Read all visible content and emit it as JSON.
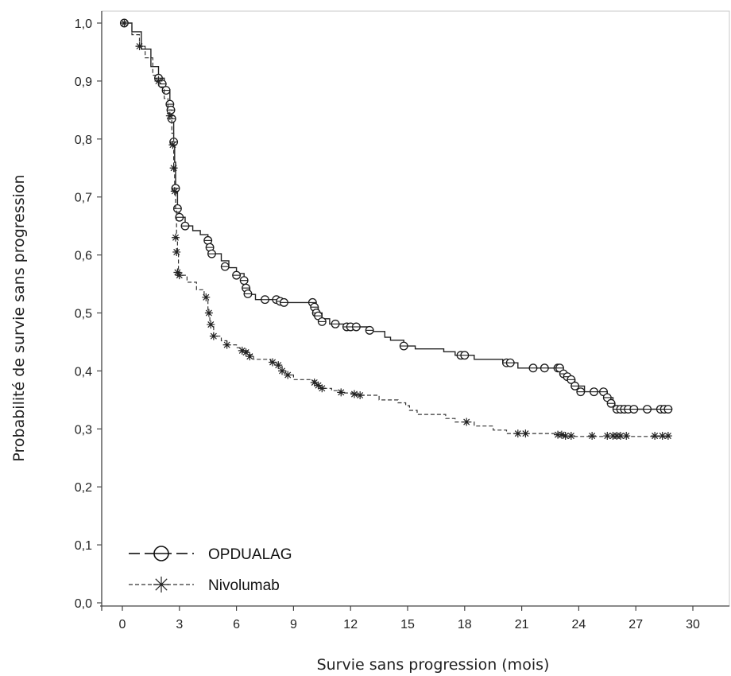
{
  "chart_data": {
    "type": "line",
    "xlabel": "Survie sans progression (mois)",
    "ylabel": "Probabilité de survie sans progression",
    "xlim": [
      0,
      30
    ],
    "ylim": [
      0.0,
      1.0
    ],
    "x_ticks": [
      "0",
      "3",
      "6",
      "9",
      "12",
      "15",
      "18",
      "21",
      "24",
      "27",
      "30"
    ],
    "y_ticks": [
      "0,0",
      "0,1",
      "0,2",
      "0,3",
      "0,4",
      "0,5",
      "0,6",
      "0,7",
      "0,8",
      "0,9",
      "1,0"
    ],
    "grid": false,
    "legend_position": "bottom-left",
    "series": [
      {
        "name": "OPDUALAG",
        "line_style": "solid",
        "marker": "circle",
        "color": "#222222",
        "points": [
          [
            0,
            1.0
          ],
          [
            0.5,
            0.985
          ],
          [
            1.0,
            0.955
          ],
          [
            1.5,
            0.925
          ],
          [
            1.9,
            0.905
          ],
          [
            2.2,
            0.885
          ],
          [
            2.5,
            0.86
          ],
          [
            2.6,
            0.835
          ],
          [
            2.7,
            0.795
          ],
          [
            2.75,
            0.76
          ],
          [
            2.8,
            0.715
          ],
          [
            2.9,
            0.68
          ],
          [
            3.0,
            0.665
          ],
          [
            3.3,
            0.65
          ],
          [
            3.7,
            0.642
          ],
          [
            4.1,
            0.635
          ],
          [
            4.5,
            0.625
          ],
          [
            4.6,
            0.613
          ],
          [
            4.7,
            0.602
          ],
          [
            5.2,
            0.59
          ],
          [
            5.6,
            0.578
          ],
          [
            6.0,
            0.568
          ],
          [
            6.4,
            0.556
          ],
          [
            6.5,
            0.543
          ],
          [
            6.7,
            0.532
          ],
          [
            7.0,
            0.523
          ],
          [
            8.0,
            0.523
          ],
          [
            8.2,
            0.518
          ],
          [
            10.0,
            0.518
          ],
          [
            10.1,
            0.51
          ],
          [
            10.3,
            0.5
          ],
          [
            10.5,
            0.49
          ],
          [
            10.9,
            0.481
          ],
          [
            11.5,
            0.481
          ],
          [
            11.8,
            0.476
          ],
          [
            13.0,
            0.468
          ],
          [
            13.8,
            0.458
          ],
          [
            14.1,
            0.453
          ],
          [
            14.8,
            0.443
          ],
          [
            15.4,
            0.438
          ],
          [
            16.9,
            0.433
          ],
          [
            17.5,
            0.427
          ],
          [
            18.5,
            0.42
          ],
          [
            20.0,
            0.414
          ],
          [
            20.8,
            0.405
          ],
          [
            22.7,
            0.405
          ],
          [
            23.1,
            0.395
          ],
          [
            23.5,
            0.385
          ],
          [
            23.8,
            0.374
          ],
          [
            24.3,
            0.364
          ],
          [
            25.2,
            0.364
          ],
          [
            25.5,
            0.354
          ],
          [
            25.8,
            0.344
          ],
          [
            25.9,
            0.334
          ],
          [
            28.8,
            0.334
          ]
        ],
        "markers": [
          [
            0.1,
            1.0
          ],
          [
            1.9,
            0.905
          ],
          [
            2.1,
            0.895
          ],
          [
            2.3,
            0.884
          ],
          [
            2.5,
            0.86
          ],
          [
            2.55,
            0.85
          ],
          [
            2.6,
            0.835
          ],
          [
            2.7,
            0.795
          ],
          [
            2.8,
            0.715
          ],
          [
            2.9,
            0.68
          ],
          [
            3.0,
            0.665
          ],
          [
            3.3,
            0.65
          ],
          [
            4.5,
            0.625
          ],
          [
            4.6,
            0.613
          ],
          [
            4.7,
            0.602
          ],
          [
            5.4,
            0.58
          ],
          [
            6.0,
            0.565
          ],
          [
            6.4,
            0.556
          ],
          [
            6.5,
            0.543
          ],
          [
            6.6,
            0.533
          ],
          [
            7.5,
            0.523
          ],
          [
            8.1,
            0.523
          ],
          [
            8.3,
            0.52
          ],
          [
            8.5,
            0.518
          ],
          [
            10.0,
            0.518
          ],
          [
            10.1,
            0.51
          ],
          [
            10.2,
            0.5
          ],
          [
            10.3,
            0.495
          ],
          [
            10.5,
            0.485
          ],
          [
            11.2,
            0.481
          ],
          [
            11.8,
            0.476
          ],
          [
            12.0,
            0.476
          ],
          [
            12.3,
            0.476
          ],
          [
            13.0,
            0.47
          ],
          [
            14.8,
            0.443
          ],
          [
            17.8,
            0.427
          ],
          [
            18.0,
            0.427
          ],
          [
            20.2,
            0.414
          ],
          [
            20.4,
            0.414
          ],
          [
            21.6,
            0.405
          ],
          [
            22.2,
            0.405
          ],
          [
            22.9,
            0.405
          ],
          [
            23.0,
            0.405
          ],
          [
            23.2,
            0.395
          ],
          [
            23.4,
            0.39
          ],
          [
            23.6,
            0.385
          ],
          [
            23.8,
            0.374
          ],
          [
            24.1,
            0.364
          ],
          [
            24.8,
            0.364
          ],
          [
            25.3,
            0.364
          ],
          [
            25.5,
            0.354
          ],
          [
            25.7,
            0.344
          ],
          [
            26.0,
            0.334
          ],
          [
            26.2,
            0.334
          ],
          [
            26.4,
            0.334
          ],
          [
            26.6,
            0.334
          ],
          [
            26.9,
            0.334
          ],
          [
            27.6,
            0.334
          ],
          [
            28.3,
            0.334
          ],
          [
            28.5,
            0.334
          ],
          [
            28.7,
            0.334
          ]
        ]
      },
      {
        "name": "Nivolumab",
        "line_style": "dashed",
        "marker": "asterisk",
        "color": "#333333",
        "points": [
          [
            0,
            1.0
          ],
          [
            0.5,
            0.98
          ],
          [
            0.9,
            0.96
          ],
          [
            1.2,
            0.94
          ],
          [
            1.6,
            0.91
          ],
          [
            1.9,
            0.89
          ],
          [
            2.2,
            0.87
          ],
          [
            2.4,
            0.85
          ],
          [
            2.6,
            0.81
          ],
          [
            2.7,
            0.75
          ],
          [
            2.75,
            0.71
          ],
          [
            2.8,
            0.68
          ],
          [
            2.85,
            0.63
          ],
          [
            2.9,
            0.605
          ],
          [
            2.95,
            0.575
          ],
          [
            3.0,
            0.565
          ],
          [
            3.4,
            0.553
          ],
          [
            3.9,
            0.54
          ],
          [
            4.3,
            0.527
          ],
          [
            4.5,
            0.5
          ],
          [
            4.6,
            0.48
          ],
          [
            4.8,
            0.46
          ],
          [
            5.2,
            0.452
          ],
          [
            5.5,
            0.445
          ],
          [
            6.0,
            0.44
          ],
          [
            6.3,
            0.435
          ],
          [
            6.6,
            0.428
          ],
          [
            6.9,
            0.42
          ],
          [
            7.5,
            0.42
          ],
          [
            7.8,
            0.415
          ],
          [
            8.2,
            0.41
          ],
          [
            8.4,
            0.4
          ],
          [
            8.6,
            0.393
          ],
          [
            9.0,
            0.385
          ],
          [
            10.0,
            0.383
          ],
          [
            10.2,
            0.377
          ],
          [
            10.4,
            0.37
          ],
          [
            11.0,
            0.366
          ],
          [
            11.5,
            0.362
          ],
          [
            12.3,
            0.358
          ],
          [
            13.5,
            0.35
          ],
          [
            14.5,
            0.345
          ],
          [
            14.9,
            0.34
          ],
          [
            15.1,
            0.332
          ],
          [
            15.5,
            0.325
          ],
          [
            16.8,
            0.325
          ],
          [
            17.0,
            0.318
          ],
          [
            17.5,
            0.312
          ],
          [
            18.5,
            0.305
          ],
          [
            19.5,
            0.298
          ],
          [
            20.2,
            0.292
          ],
          [
            22.8,
            0.29
          ],
          [
            23.2,
            0.287
          ],
          [
            28.8,
            0.287
          ]
        ],
        "markers": [
          [
            0.1,
            1.0
          ],
          [
            0.9,
            0.96
          ],
          [
            1.9,
            0.9
          ],
          [
            2.5,
            0.84
          ],
          [
            2.65,
            0.79
          ],
          [
            2.7,
            0.75
          ],
          [
            2.75,
            0.71
          ],
          [
            2.8,
            0.63
          ],
          [
            2.85,
            0.605
          ],
          [
            2.9,
            0.57
          ],
          [
            3.0,
            0.565
          ],
          [
            4.4,
            0.527
          ],
          [
            4.55,
            0.5
          ],
          [
            4.65,
            0.48
          ],
          [
            4.8,
            0.46
          ],
          [
            5.5,
            0.445
          ],
          [
            6.3,
            0.435
          ],
          [
            6.5,
            0.432
          ],
          [
            6.7,
            0.425
          ],
          [
            7.9,
            0.415
          ],
          [
            8.2,
            0.41
          ],
          [
            8.4,
            0.4
          ],
          [
            8.7,
            0.393
          ],
          [
            10.1,
            0.38
          ],
          [
            10.3,
            0.375
          ],
          [
            10.5,
            0.37
          ],
          [
            11.5,
            0.363
          ],
          [
            12.2,
            0.36
          ],
          [
            12.5,
            0.358
          ],
          [
            18.1,
            0.312
          ],
          [
            20.8,
            0.292
          ],
          [
            21.2,
            0.292
          ],
          [
            22.9,
            0.29
          ],
          [
            23.1,
            0.29
          ],
          [
            23.3,
            0.288
          ],
          [
            23.6,
            0.288
          ],
          [
            24.7,
            0.288
          ],
          [
            25.5,
            0.288
          ],
          [
            25.8,
            0.288
          ],
          [
            26.0,
            0.288
          ],
          [
            26.2,
            0.288
          ],
          [
            26.5,
            0.288
          ],
          [
            28.0,
            0.288
          ],
          [
            28.4,
            0.288
          ],
          [
            28.7,
            0.288
          ]
        ]
      }
    ]
  }
}
